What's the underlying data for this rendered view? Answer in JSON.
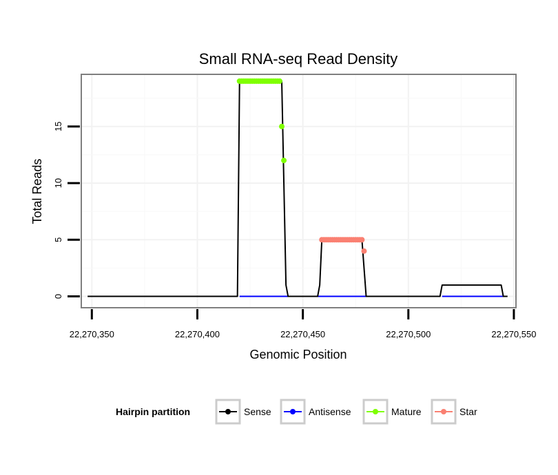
{
  "chart_data": {
    "type": "line",
    "title": "Small RNA-seq Read Density",
    "xlabel": "Genomic Position",
    "ylabel": "Total Reads",
    "xlim": [
      22270345,
      22270551
    ],
    "ylim": [
      -1,
      19.6
    ],
    "x_ticks": [
      22270350,
      22270400,
      22270450,
      22270500,
      22270550
    ],
    "x_tick_labels": [
      "22,270,350",
      "22,270,400",
      "22,270,450",
      "22,270,500",
      "22,270,550"
    ],
    "y_ticks": [
      0,
      5,
      10,
      15
    ],
    "y_tick_labels": [
      "0",
      "5",
      "10",
      "15"
    ],
    "grid": true,
    "legend": {
      "title": "Hairpin partition",
      "position": "bottom",
      "entries": [
        {
          "name": "Sense",
          "color": "#000000"
        },
        {
          "name": "Antisense",
          "color": "#0000ff"
        },
        {
          "name": "Mature",
          "color": "#7fff00"
        },
        {
          "name": "Star",
          "color": "#fa8072"
        }
      ]
    },
    "series": [
      {
        "name": "Sense",
        "color": "#000000",
        "kind": "line",
        "x": [
          22270348,
          22270419,
          22270420,
          22270440,
          22270442,
          22270443,
          22270457,
          22270458,
          22270459,
          22270478,
          22270480,
          22270515,
          22270516,
          22270544,
          22270545,
          22270547
        ],
        "y": [
          0,
          0,
          19,
          19,
          1,
          0,
          0,
          1,
          5,
          5,
          0,
          0,
          1,
          1,
          0,
          0
        ]
      },
      {
        "name": "Antisense",
        "color": "#0000ff",
        "kind": "line",
        "x": [
          22270420,
          22270480,
          22270516,
          22270545
        ],
        "y": [
          0,
          0,
          0,
          0
        ],
        "segments": [
          [
            0,
            1
          ],
          [
            2,
            3
          ]
        ]
      },
      {
        "name": "Mature",
        "color": "#7fff00",
        "kind": "points",
        "x": [
          22270420,
          22270421,
          22270422,
          22270423,
          22270424,
          22270425,
          22270426,
          22270427,
          22270428,
          22270429,
          22270430,
          22270431,
          22270432,
          22270433,
          22270434,
          22270435,
          22270436,
          22270437,
          22270438,
          22270439,
          22270440,
          22270441
        ],
        "y": [
          19,
          19,
          19,
          19,
          19,
          19,
          19,
          19,
          19,
          19,
          19,
          19,
          19,
          19,
          19,
          19,
          19,
          19,
          19,
          19,
          15,
          12
        ]
      },
      {
        "name": "Star",
        "color": "#fa8072",
        "kind": "points",
        "x": [
          22270459,
          22270460,
          22270461,
          22270462,
          22270463,
          22270464,
          22270465,
          22270466,
          22270467,
          22270468,
          22270469,
          22270470,
          22270471,
          22270472,
          22270473,
          22270474,
          22270475,
          22270476,
          22270477,
          22270478,
          22270479
        ],
        "y": [
          5,
          5,
          5,
          5,
          5,
          5,
          5,
          5,
          5,
          5,
          5,
          5,
          5,
          5,
          5,
          5,
          5,
          5,
          5,
          5,
          4
        ]
      }
    ]
  }
}
